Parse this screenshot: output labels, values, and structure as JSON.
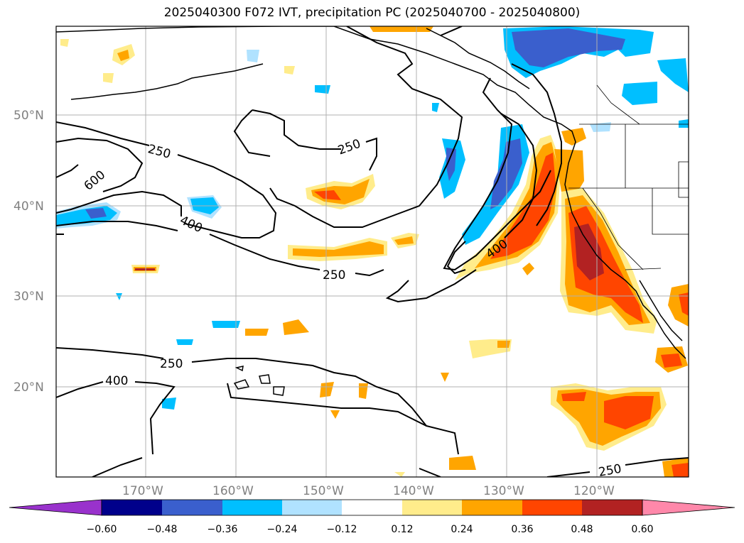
{
  "title": "2025040300 F072 IVT, precipitation PC (2025040700 - 2025040800)",
  "lat_labels": [
    "50°N",
    "40°N",
    "30°N",
    "20°N"
  ],
  "lon_labels": [
    "170°W",
    "160°W",
    "150°W",
    "140°W",
    "130°W",
    "120°W"
  ],
  "contour_labels": [
    "250",
    "600",
    "400",
    "250",
    "250",
    "400",
    "250",
    "400",
    "250"
  ],
  "colorbar": {
    "ticks": [
      "−0.60",
      "−0.48",
      "−0.36",
      "−0.24",
      "−0.12",
      "0.12",
      "0.24",
      "0.36",
      "0.48",
      "0.60"
    ],
    "colors": [
      "#9932cc",
      "#00008b",
      "#3a5fcd",
      "#00bfff",
      "#b0e2ff",
      "#ffffff",
      "#ffec8b",
      "#ffa500",
      "#ff4500",
      "#b22222",
      "#ff88aa"
    ]
  }
}
